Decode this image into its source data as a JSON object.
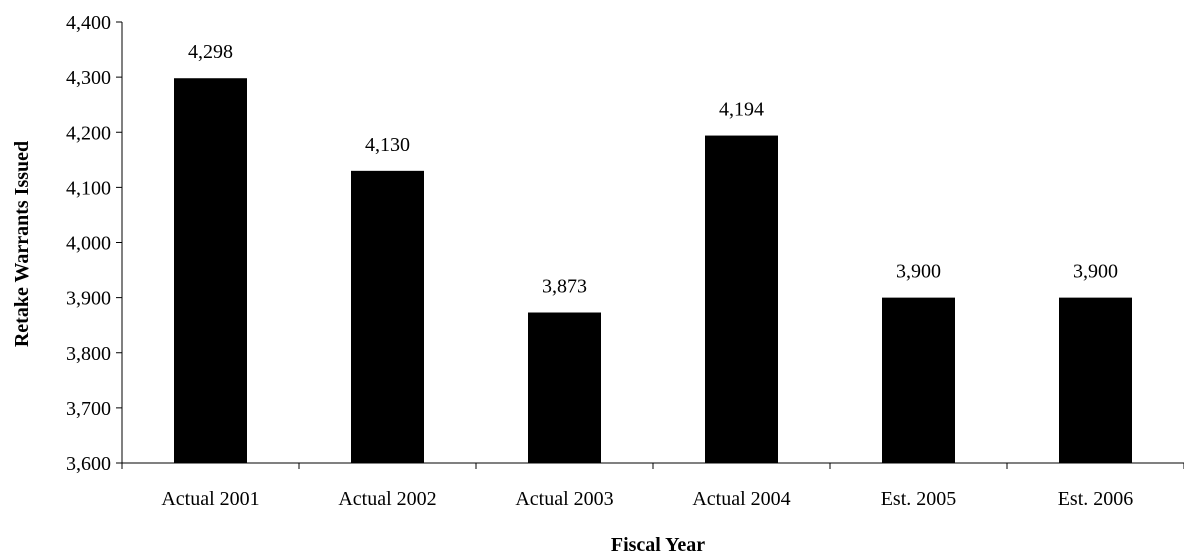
{
  "chart_data": {
    "type": "bar",
    "title": "",
    "xlabel": "Fiscal Year",
    "ylabel": "Retake Warrants Issued",
    "categories": [
      "Actual 2001",
      "Actual 2002",
      "Actual 2003",
      "Actual 2004",
      "Est. 2005",
      "Est. 2006"
    ],
    "values": [
      4298,
      4130,
      3873,
      4194,
      3900,
      3900
    ],
    "value_labels": [
      "4,298",
      "4,130",
      "3,873",
      "4,194",
      "3,900",
      "3,900"
    ],
    "ylim": [
      3600,
      4400
    ],
    "yticks": [
      3600,
      3700,
      3800,
      3900,
      4000,
      4100,
      4200,
      4300,
      4400
    ],
    "ytick_labels": [
      "3,600",
      "3,700",
      "3,800",
      "3,900",
      "4,000",
      "4,100",
      "4,200",
      "4,300",
      "4,400"
    ],
    "grid": false,
    "legend": "none",
    "bar_color": "#000000"
  }
}
